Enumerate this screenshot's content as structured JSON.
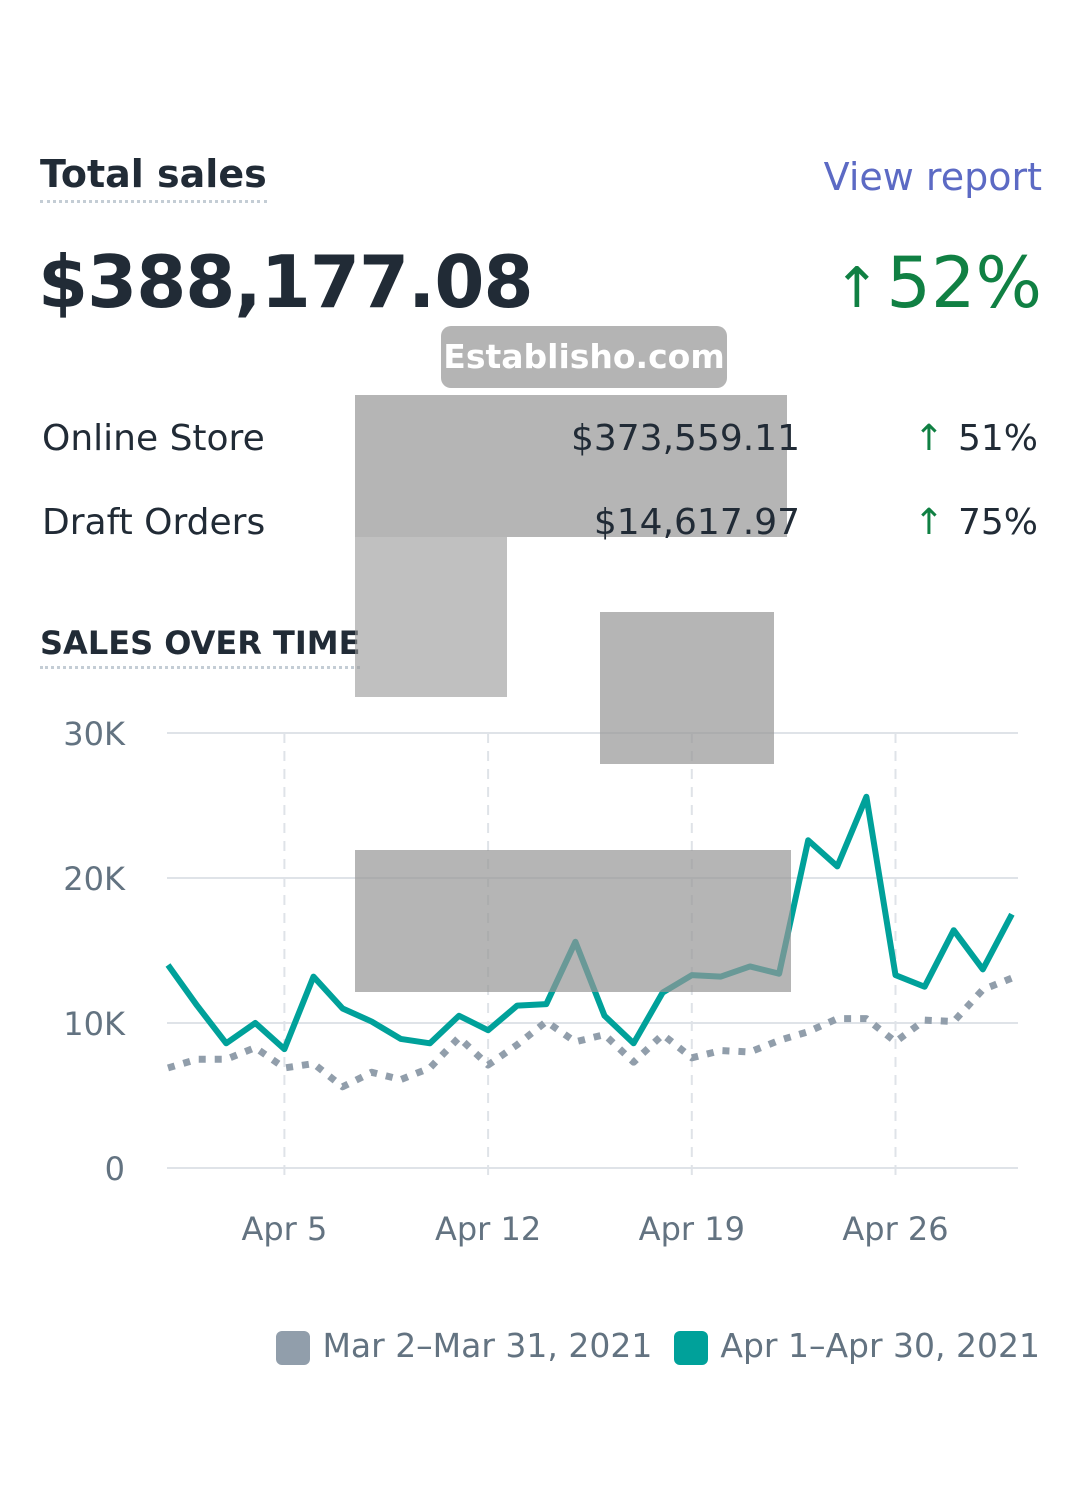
{
  "header": {
    "title": "Total sales",
    "view_report": "View report"
  },
  "summary": {
    "total": "$388,177.08",
    "change_arrow": "↑",
    "change": "52%"
  },
  "breakdown": [
    {
      "label": "Online Store",
      "value": "$373,559.11",
      "arrow": "↑",
      "change": "51%"
    },
    {
      "label": "Draft Orders",
      "value": "$14,617.97",
      "arrow": "↑",
      "change": "75%"
    }
  ],
  "watermark": {
    "text": "Establisho.com"
  },
  "colors": {
    "current": "#00a19a",
    "previous": "#919eab",
    "positive": "#108043",
    "link": "#5c6ac4"
  },
  "chart_data": {
    "type": "line",
    "title": "SALES OVER TIME",
    "xlabel": "",
    "ylabel": "",
    "ylim": [
      0,
      30000
    ],
    "y_ticks": [
      {
        "value": 0,
        "label": "0"
      },
      {
        "value": 10000,
        "label": "10K"
      },
      {
        "value": 20000,
        "label": "20K"
      },
      {
        "value": 30000,
        "label": "30K"
      }
    ],
    "x_ticks": [
      {
        "day": 5,
        "label": "Apr 5"
      },
      {
        "day": 12,
        "label": "Apr 12"
      },
      {
        "day": 19,
        "label": "Apr 19"
      },
      {
        "day": 26,
        "label": "Apr 26"
      }
    ],
    "x": [
      1,
      2,
      3,
      4,
      5,
      6,
      7,
      8,
      9,
      10,
      11,
      12,
      13,
      14,
      15,
      16,
      17,
      18,
      19,
      20,
      21,
      22,
      23,
      24,
      25,
      26,
      27,
      28,
      29,
      30
    ],
    "grid": true,
    "legend_position": "bottom-right",
    "series": [
      {
        "name": "Mar 2–Mar 31, 2021",
        "style": "dotted",
        "color": "#919eab",
        "values": [
          6900,
          7500,
          7500,
          8300,
          6900,
          7200,
          5600,
          6600,
          6100,
          6900,
          9000,
          7100,
          8500,
          10100,
          8700,
          9200,
          7300,
          9200,
          7600,
          8100,
          8000,
          8800,
          9400,
          10300,
          10300,
          8700,
          10200,
          10100,
          12300,
          13100
        ]
      },
      {
        "name": "Apr 1–Apr 30, 2021",
        "style": "solid",
        "color": "#00a19a",
        "values": [
          14000,
          11200,
          8600,
          10000,
          8200,
          13200,
          11000,
          10100,
          8900,
          8600,
          10500,
          9500,
          11200,
          11300,
          15600,
          10500,
          8600,
          12100,
          13300,
          13200,
          13900,
          13400,
          22600,
          20800,
          25600,
          13300,
          12500,
          16400,
          13700,
          17500
        ]
      }
    ]
  }
}
